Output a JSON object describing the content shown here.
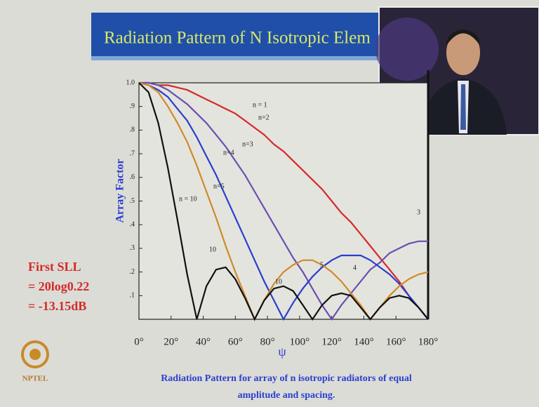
{
  "header": {
    "title": "Radiation Pattern of N Isotropic Elem"
  },
  "chart_data": {
    "type": "line",
    "xlabel": "ψ",
    "ylabel": "Array Factor",
    "x": [
      0,
      6,
      12,
      18,
      24,
      30,
      36,
      42,
      48,
      54,
      60,
      66,
      72,
      78,
      84,
      90,
      96,
      102,
      108,
      114,
      120,
      126,
      132,
      138,
      144,
      150,
      156,
      162,
      168,
      174,
      180
    ],
    "series": [
      {
        "name": "n=2",
        "color": "#d42a2a",
        "values": [
          1,
          1,
          0.99,
          0.99,
          0.98,
          0.97,
          0.95,
          0.93,
          0.91,
          0.89,
          0.87,
          0.84,
          0.81,
          0.78,
          0.74,
          0.71,
          0.67,
          0.63,
          0.59,
          0.55,
          0.5,
          0.45,
          0.41,
          0.36,
          0.31,
          0.26,
          0.21,
          0.16,
          0.1,
          0.05,
          0
        ]
      },
      {
        "name": "n=3",
        "color": "#6a4fb0",
        "values": [
          1,
          1,
          0.99,
          0.97,
          0.94,
          0.91,
          0.87,
          0.83,
          0.78,
          0.73,
          0.67,
          0.61,
          0.54,
          0.47,
          0.4,
          0.33,
          0.26,
          0.2,
          0.13,
          0.06,
          0,
          0.06,
          0.11,
          0.16,
          0.21,
          0.24,
          0.28,
          0.3,
          0.32,
          0.33,
          0.33
        ]
      },
      {
        "name": "n=4",
        "color": "#2a3ed0",
        "values": [
          1,
          0.99,
          0.97,
          0.94,
          0.89,
          0.84,
          0.77,
          0.69,
          0.61,
          0.52,
          0.43,
          0.34,
          0.25,
          0.16,
          0.08,
          0,
          0.07,
          0.13,
          0.18,
          0.22,
          0.25,
          0.27,
          0.27,
          0.27,
          0.25,
          0.22,
          0.19,
          0.15,
          0.1,
          0.05,
          0
        ]
      },
      {
        "name": "n=5",
        "color": "#d08a2a",
        "values": [
          1,
          0.99,
          0.96,
          0.9,
          0.83,
          0.75,
          0.65,
          0.54,
          0.43,
          0.31,
          0.2,
          0.1,
          0,
          0.08,
          0.15,
          0.2,
          0.23,
          0.25,
          0.25,
          0.23,
          0.2,
          0.16,
          0.11,
          0.06,
          0,
          0.05,
          0.1,
          0.14,
          0.17,
          0.19,
          0.2
        ]
      },
      {
        "name": "n = 10",
        "color": "#111111",
        "values": [
          1,
          0.96,
          0.83,
          0.64,
          0.42,
          0.19,
          0,
          0.14,
          0.21,
          0.22,
          0.17,
          0.09,
          0,
          0.08,
          0.13,
          0.14,
          0.12,
          0.06,
          0,
          0.06,
          0.1,
          0.11,
          0.1,
          0.05,
          0,
          0.05,
          0.09,
          0.1,
          0.09,
          0.05,
          0
        ]
      }
    ],
    "annotations": [
      "n = 1",
      "10",
      "5",
      "4",
      "3",
      "10"
    ],
    "xlim": [
      0,
      180
    ],
    "xticks": [
      {
        "value": 0,
        "label": "0°"
      },
      {
        "value": 20,
        "label": "20°"
      },
      {
        "value": 40,
        "label": "40°"
      },
      {
        "value": 60,
        "label": "60°"
      },
      {
        "value": 80,
        "label": "80°"
      },
      {
        "value": 100,
        "label": "100°"
      },
      {
        "value": 120,
        "label": "120°"
      },
      {
        "value": 140,
        "label": "140°"
      },
      {
        "value": 160,
        "label": "160°"
      },
      {
        "value": 180,
        "label": "180°"
      }
    ],
    "ylim": [
      0,
      1
    ],
    "yticks": [
      {
        "value": 0.1,
        "label": ".1"
      },
      {
        "value": 0.2,
        "label": ".2"
      },
      {
        "value": 0.3,
        "label": ".3"
      },
      {
        "value": 0.4,
        "label": ".4"
      },
      {
        "value": 0.5,
        "label": ".5"
      },
      {
        "value": 0.6,
        "label": ".6"
      },
      {
        "value": 0.7,
        "label": ".7"
      },
      {
        "value": 0.8,
        "label": ".8"
      },
      {
        "value": 0.9,
        "label": ".9"
      },
      {
        "value": 1,
        "label": "1.0"
      }
    ]
  },
  "side_note": [
    "First SLL",
    "= 20log0.22",
    "= -13.15dB"
  ],
  "caption": [
    "Radiation Pattern for array of n isotropic radiators of equal",
    "amplitude and spacing."
  ],
  "logo": "NPTEL"
}
